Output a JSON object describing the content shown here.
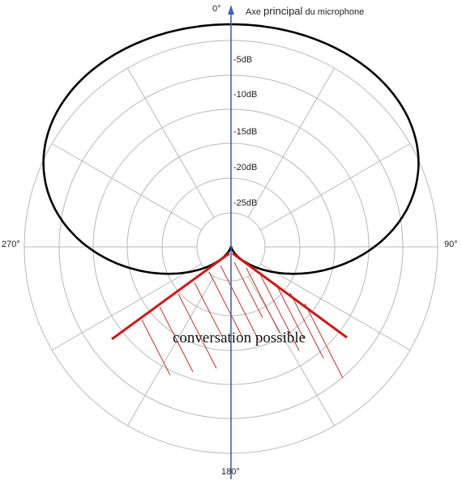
{
  "diagram": {
    "axis_title_prefix": "Axe ",
    "axis_title_emph": "principal",
    "axis_title_suffix": " du microphone",
    "angles": {
      "top": "0°",
      "right": "90°",
      "bottom": "180°",
      "left": "270°"
    },
    "db_labels": [
      "-5dB",
      "-10dB",
      "-15dB",
      "-20dB",
      "-25dB"
    ],
    "zone_label": "conversation possible",
    "colors": {
      "grid": "#b8b8b8",
      "cardioid": "#000000",
      "axis_arrow": "#3f63b5",
      "zone": "#d01818"
    }
  }
}
